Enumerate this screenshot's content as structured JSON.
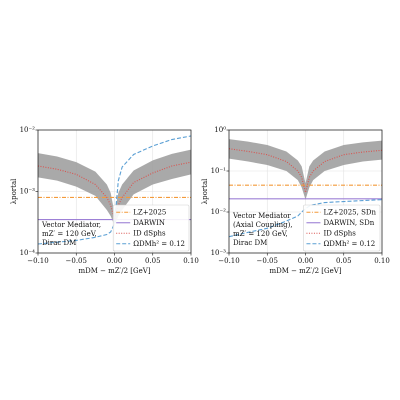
{
  "chart_data": [
    {
      "type": "line",
      "log_y": true,
      "grid": true,
      "legend_loc": "lower right",
      "ylabel": "λportal",
      "xlabel": "mDM − mZ′/2 [GeV]",
      "xlim": [
        -0.1,
        0.1
      ],
      "xticks": [
        {
          "value": -0.1,
          "label": "−0.10"
        },
        {
          "value": -0.05,
          "label": "−0.05"
        },
        {
          "value": 0,
          "label": "0.00"
        },
        {
          "value": 0.05,
          "label": "0.05"
        },
        {
          "value": 0.1,
          "label": "0.10"
        }
      ],
      "ylim": [
        0.0001,
        0.01
      ],
      "yticks": [
        {
          "value": 0.0001,
          "label": "10⁻⁴"
        },
        {
          "value": 0.001,
          "label": "10⁻³"
        },
        {
          "value": 0.01,
          "label": "10⁻²"
        }
      ],
      "annotation": [
        "Vector Mediator,",
        "mZ′ = 120 GeV,",
        "Dirac DM"
      ],
      "x": [
        -0.1,
        -0.075,
        -0.05,
        -0.025,
        -0.01,
        -0.005,
        0,
        0.005,
        0.01,
        0.025,
        0.05,
        0.075,
        0.1
      ],
      "band": {
        "color": "#9a9a9a",
        "upper": [
          0.0042,
          0.0037,
          0.003,
          0.0021,
          0.0013,
          0.00095,
          0.00045,
          0.00095,
          0.0013,
          0.0022,
          0.0032,
          0.0041,
          0.0048
        ],
        "lower": [
          0.0017,
          0.0015,
          0.0012,
          0.00085,
          0.0005,
          0.0004,
          0.00028,
          0.0004,
          0.0005,
          0.0009,
          0.0013,
          0.0016,
          0.0019
        ]
      },
      "series": [
        {
          "name": "LZ+2025",
          "color": "#f39a3a",
          "linestyle": "dashdot",
          "value": 0.0008
        },
        {
          "name": "DARWIN",
          "color": "#9d80d6",
          "linestyle": "solid",
          "value": 0.00035
        },
        {
          "name": "ID dSphs",
          "color": "#d9534f",
          "linestyle": "dotted",
          "values": [
            0.0026,
            0.0023,
            0.0019,
            0.0013,
            0.0008,
            0.0006,
            0.00035,
            0.0006,
            0.0008,
            0.0014,
            0.002,
            0.0026,
            0.003
          ]
        },
        {
          "name": "ΩDMh² = 0.12",
          "color": "#5a9fd4",
          "linestyle": "dashed",
          "values": [
            0.00014,
            0.00015,
            0.00016,
            0.00018,
            0.0002,
            0.00022,
            0.0003,
            0.0015,
            0.0025,
            0.004,
            0.0055,
            0.007,
            0.008
          ]
        }
      ]
    },
    {
      "type": "line",
      "log_y": true,
      "grid": true,
      "legend_loc": "lower right",
      "ylabel": "λportal",
      "xlabel": "mDM − mZ′/2 [GeV]",
      "xlim": [
        -0.1,
        0.1
      ],
      "xticks": [
        {
          "value": -0.1,
          "label": "−0.10"
        },
        {
          "value": -0.05,
          "label": "−0.05"
        },
        {
          "value": 0,
          "label": "0.00"
        },
        {
          "value": 0.05,
          "label": "0.05"
        },
        {
          "value": 0.1,
          "label": "0.10"
        }
      ],
      "ylim": [
        0.001,
        1
      ],
      "yticks": [
        {
          "value": 0.001,
          "label": "10⁻³"
        },
        {
          "value": 0.01,
          "label": "10⁻²"
        },
        {
          "value": 0.1,
          "label": "10⁻¹"
        },
        {
          "value": 1,
          "label": "10⁰"
        }
      ],
      "annotation": [
        "Vector Mediator",
        "(Axial Coupling),",
        "mZ′ = 120 GeV,",
        "Dirac DM"
      ],
      "x": [
        -0.1,
        -0.075,
        -0.05,
        -0.025,
        -0.01,
        -0.005,
        0,
        0.005,
        0.01,
        0.025,
        0.05,
        0.075,
        0.1
      ],
      "band": {
        "color": "#9a9a9a",
        "upper": [
          0.6,
          0.52,
          0.43,
          0.3,
          0.18,
          0.13,
          0.05,
          0.13,
          0.18,
          0.3,
          0.43,
          0.5,
          0.55
        ],
        "lower": [
          0.2,
          0.17,
          0.14,
          0.1,
          0.06,
          0.04,
          0.02,
          0.04,
          0.06,
          0.1,
          0.14,
          0.17,
          0.19
        ]
      },
      "series": [
        {
          "name": "LZ+2025, SDn",
          "color": "#f39a3a",
          "linestyle": "dashdot",
          "value": 0.045
        },
        {
          "name": "DARWIN, SDn",
          "color": "#9d80d6",
          "linestyle": "solid",
          "value": 0.021
        },
        {
          "name": "ID dSphs",
          "color": "#d9534f",
          "linestyle": "dotted",
          "values": [
            0.35,
            0.3,
            0.25,
            0.17,
            0.1,
            0.07,
            0.03,
            0.07,
            0.1,
            0.17,
            0.25,
            0.29,
            0.32
          ]
        },
        {
          "name": "ΩDMh² = 0.12",
          "color": "#5a9fd4",
          "linestyle": "dashed",
          "values": [
            0.0025,
            0.0032,
            0.004,
            0.006,
            0.008,
            0.01,
            0.012,
            0.014,
            0.015,
            0.017,
            0.018,
            0.019,
            0.02
          ]
        }
      ]
    }
  ]
}
